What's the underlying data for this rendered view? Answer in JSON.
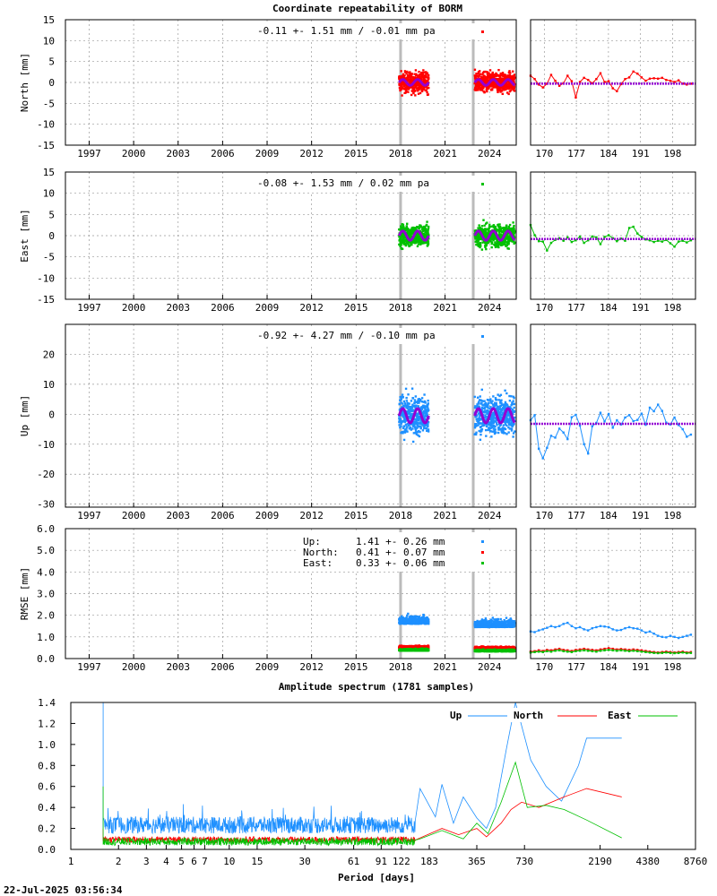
{
  "page_title": "Coordinate repeatability of BORM",
  "footer_timestamp": "22-Jul-2025 03:56:34",
  "colors": {
    "north": "#ff0000",
    "east": "#00c000",
    "up": "#1e90ff",
    "model": "#9400d3",
    "gap": "#bbbbbb"
  },
  "chart_data": [
    {
      "type": "scatter",
      "id": "north",
      "ylabel": "North [mm]",
      "ylim": [
        -15,
        15
      ],
      "yticks": [
        15,
        10,
        5,
        0,
        -5,
        -10,
        -15
      ],
      "xlim": [
        1995.4,
        2025.8
      ],
      "xticks": [
        1997,
        2000,
        2003,
        2006,
        2009,
        2012,
        2015,
        2018,
        2021,
        2024
      ],
      "stats_label": "-0.11 +- 1.51 mm / -0.01 mm pa",
      "series": [
        {
          "name": "North",
          "color": "#ff0000",
          "segments": [
            [
              2017.9,
              2019.9
            ],
            [
              2023.0,
              2025.7
            ]
          ],
          "mean": 0.0,
          "spread": 1.7,
          "model_amp": 0.7
        }
      ],
      "gaps_x": [
        2018.0,
        2022.9
      ],
      "zoom": {
        "xticks": [
          170,
          177,
          184,
          191,
          198
        ],
        "xlim": [
          167,
          203
        ],
        "ylim": [
          -15,
          15
        ],
        "mean": -0.3,
        "values": [
          1.6,
          0.8,
          -0.5,
          -1.2,
          -0.3,
          1.8,
          0.4,
          -0.8,
          -0.2,
          1.6,
          0.3,
          -3.6,
          0.1,
          1.1,
          0.6,
          -0.2,
          0.8,
          2.2,
          0.1,
          0.3,
          -1.4,
          -2.1,
          -0.4,
          0.8,
          1.2,
          2.6,
          2.1,
          1.2,
          0.4,
          0.9,
          1.0,
          0.9,
          1.1,
          0.6,
          0.4,
          0.1,
          0.5,
          -0.3,
          -0.5,
          -0.3
        ]
      }
    },
    {
      "type": "scatter",
      "id": "east",
      "ylabel": "East [mm]",
      "ylim": [
        -15,
        15
      ],
      "yticks": [
        15,
        10,
        5,
        0,
        -5,
        -10,
        -15
      ],
      "xlim": [
        1995.4,
        2025.8
      ],
      "xticks": [
        1997,
        2000,
        2003,
        2006,
        2009,
        2012,
        2015,
        2018,
        2021,
        2024
      ],
      "stats_label": "-0.08 +- 1.53 mm /  0.02 mm pa",
      "series": [
        {
          "name": "East",
          "color": "#00c000",
          "segments": [
            [
              2017.9,
              2019.9
            ],
            [
              2023.0,
              2025.7
            ]
          ],
          "mean": 0.0,
          "spread": 1.8,
          "model_amp": 1.1
        }
      ],
      "gaps_x": [
        2018.0,
        2022.9
      ],
      "zoom": {
        "xticks": [
          170,
          177,
          184,
          191,
          198
        ],
        "xlim": [
          167,
          203
        ],
        "ylim": [
          -15,
          15
        ],
        "mean": -0.8,
        "values": [
          2.5,
          0.1,
          -1.3,
          -1.4,
          -3.5,
          -1.7,
          -1.0,
          -0.6,
          -1.2,
          -0.4,
          -1.5,
          -1.1,
          -0.2,
          -1.7,
          -1.1,
          -0.2,
          -0.4,
          -2.0,
          -0.3,
          0.1,
          -0.6,
          -1.3,
          -0.7,
          -1.2,
          1.8,
          2.1,
          0.5,
          -0.3,
          -0.9,
          -1.1,
          -1.5,
          -1.2,
          -1.4,
          -1.0,
          -1.8,
          -2.6,
          -1.4,
          -1.2,
          -1.6,
          -1.1
        ]
      }
    },
    {
      "type": "scatter",
      "id": "up",
      "ylabel": "Up [mm]",
      "ylim": [
        -31,
        30
      ],
      "yticks": [
        20,
        10,
        0,
        -10,
        -20,
        -30
      ],
      "xlim": [
        1995.4,
        2025.8
      ],
      "xticks": [
        1997,
        2000,
        2003,
        2006,
        2009,
        2012,
        2015,
        2018,
        2021,
        2024
      ],
      "stats_label": "-0.92 +- 4.27 mm / -0.10 mm pa",
      "series": [
        {
          "name": "Up",
          "color": "#1e90ff",
          "segments": [
            [
              2017.9,
              2019.9
            ],
            [
              2023.0,
              2025.7
            ]
          ],
          "mean": -0.5,
          "spread": 4.6,
          "model_amp": 2.4
        }
      ],
      "gaps_x": [
        2018.0,
        2022.9
      ],
      "zoom": {
        "xticks": [
          170,
          177,
          184,
          191,
          198
        ],
        "xlim": [
          167,
          203
        ],
        "ylim": [
          -31,
          30
        ],
        "mean": -3.2,
        "values": [
          -2.0,
          -0.3,
          -11.5,
          -14.7,
          -11.2,
          -7.2,
          -7.8,
          -4.8,
          -6.1,
          -8.3,
          -1.0,
          -0.2,
          -3.8,
          -10.0,
          -13.1,
          -4.0,
          -2.9,
          0.5,
          -2.4,
          0.1,
          -4.5,
          -2.0,
          -3.4,
          -1.1,
          -0.3,
          -2.3,
          -1.9,
          0.2,
          -3.5,
          2.2,
          1.0,
          3.2,
          1.1,
          -2.8,
          -3.4,
          -1.1,
          -3.6,
          -5.0,
          -7.5,
          -6.8
        ]
      }
    },
    {
      "type": "scatter",
      "id": "rmse",
      "ylabel": "RMSE [mm]",
      "ylim": [
        0,
        6
      ],
      "yticks": [
        "6.0",
        "5.0",
        "4.0",
        "3.0",
        "2.0",
        "1.0",
        "0.0"
      ],
      "xlim": [
        1995.4,
        2025.8
      ],
      "xticks": [
        1997,
        2000,
        2003,
        2006,
        2009,
        2012,
        2015,
        2018,
        2021,
        2024
      ],
      "legend": [
        {
          "label": "Up:",
          "value": "1.41 +- 0.26 mm",
          "color": "#1e90ff"
        },
        {
          "label": "North:",
          "value": "0.41 +- 0.07 mm",
          "color": "#ff0000"
        },
        {
          "label": "East:",
          "value": "0.33 +- 0.06 mm",
          "color": "#00c000"
        }
      ],
      "series": [
        {
          "name": "Up",
          "color": "#1e90ff",
          "segments": [
            [
              2017.9,
              2019.9
            ],
            [
              2023.0,
              2025.7
            ]
          ],
          "mean": 1.45,
          "spread": 0.25
        },
        {
          "name": "North",
          "color": "#ff0000",
          "segments": [
            [
              2017.9,
              2019.9
            ],
            [
              2023.0,
              2025.7
            ]
          ],
          "mean": 0.45,
          "spread": 0.07
        },
        {
          "name": "East",
          "color": "#00c000",
          "segments": [
            [
              2017.9,
              2019.9
            ],
            [
              2023.0,
              2025.7
            ]
          ],
          "mean": 0.33,
          "spread": 0.06
        }
      ],
      "gaps_x": [
        2018.0,
        2022.9
      ],
      "zoom": {
        "xticks": [
          170,
          177,
          184,
          191,
          198
        ],
        "xlim": [
          167,
          203
        ],
        "ylim": [
          0,
          6
        ],
        "series": [
          {
            "name": "Up",
            "color": "#1e90ff",
            "values": [
              1.25,
              1.22,
              1.3,
              1.35,
              1.42,
              1.5,
              1.45,
              1.5,
              1.6,
              1.65,
              1.5,
              1.4,
              1.45,
              1.35,
              1.3,
              1.4,
              1.45,
              1.5,
              1.48,
              1.45,
              1.35,
              1.3,
              1.32,
              1.4,
              1.45,
              1.4,
              1.38,
              1.3,
              1.2,
              1.25,
              1.15,
              1.05,
              1.0,
              0.98,
              1.05,
              1.0,
              0.95,
              1.0,
              1.05,
              1.1
            ]
          },
          {
            "name": "North",
            "color": "#ff0000",
            "values": [
              0.32,
              0.34,
              0.38,
              0.35,
              0.4,
              0.38,
              0.42,
              0.45,
              0.4,
              0.38,
              0.35,
              0.4,
              0.42,
              0.45,
              0.42,
              0.4,
              0.38,
              0.42,
              0.45,
              0.48,
              0.45,
              0.42,
              0.44,
              0.42,
              0.4,
              0.42,
              0.4,
              0.38,
              0.35,
              0.32,
              0.3,
              0.28,
              0.3,
              0.32,
              0.3,
              0.28,
              0.3,
              0.32,
              0.28,
              0.3
            ]
          },
          {
            "name": "East",
            "color": "#00c000",
            "values": [
              0.28,
              0.3,
              0.32,
              0.3,
              0.34,
              0.32,
              0.36,
              0.38,
              0.34,
              0.32,
              0.3,
              0.34,
              0.36,
              0.38,
              0.36,
              0.34,
              0.32,
              0.36,
              0.38,
              0.4,
              0.38,
              0.36,
              0.38,
              0.36,
              0.34,
              0.36,
              0.34,
              0.32,
              0.3,
              0.28,
              0.26,
              0.25,
              0.26,
              0.28,
              0.26,
              0.25,
              0.26,
              0.28,
              0.25,
              0.26
            ]
          }
        ]
      }
    },
    {
      "type": "line",
      "id": "spectrum",
      "title": "Amplitude spectrum (1781 samples)",
      "xlabel": "Period [days]",
      "xscale": "log",
      "xlim": [
        1,
        8760
      ],
      "ylim": [
        0,
        1.4
      ],
      "xtick_values": [
        1,
        2,
        3,
        4,
        5,
        6,
        7,
        10,
        15,
        30,
        61,
        91,
        122,
        183,
        365,
        730,
        2190,
        4380,
        8760
      ],
      "xtick_labels": [
        "1",
        "2",
        "3",
        "4",
        "5",
        "6",
        "7",
        "10",
        "15",
        "30",
        "61",
        "91",
        "122",
        "183",
        "365",
        "730",
        "2190",
        "4380",
        "8760"
      ],
      "yticks": [
        "1.4",
        "1.2",
        "1.0",
        "0.8",
        "0.6",
        "0.4",
        "0.2",
        "0.0"
      ],
      "ytick_values": [
        1.4,
        1.2,
        1.0,
        0.8,
        0.6,
        0.4,
        0.2,
        0.0
      ],
      "series": [
        {
          "name": "Up",
          "color": "#1e90ff",
          "noise": [
            0.2,
            0.1
          ],
          "peaks": [
            [
              1.6,
              1.4
            ],
            [
              1.6,
              0.05
            ],
            [
              160,
              0.58
            ],
            [
              200,
              0.31
            ],
            [
              220,
              0.62
            ],
            [
              260,
              0.25
            ],
            [
              300,
              0.5
            ],
            [
              365,
              0.3
            ],
            [
              420,
              0.2
            ],
            [
              480,
              0.4
            ],
            [
              560,
              0.95
            ],
            [
              640,
              1.4
            ],
            [
              800,
              0.85
            ],
            [
              1000,
              0.6
            ],
            [
              1250,
              0.46
            ],
            [
              1600,
              0.8
            ],
            [
              1800,
              1.06
            ],
            [
              3000,
              1.06
            ]
          ]
        },
        {
          "name": "North",
          "color": "#ff0000",
          "noise": [
            0.08,
            0.05
          ],
          "peaks": [
            [
              1.6,
              0.2
            ],
            [
              160,
              0.12
            ],
            [
              220,
              0.2
            ],
            [
              280,
              0.14
            ],
            [
              365,
              0.2
            ],
            [
              420,
              0.12
            ],
            [
              520,
              0.25
            ],
            [
              600,
              0.38
            ],
            [
              700,
              0.45
            ],
            [
              900,
              0.4
            ],
            [
              1300,
              0.5
            ],
            [
              1800,
              0.58
            ],
            [
              3000,
              0.5
            ]
          ]
        },
        {
          "name": "East",
          "color": "#00c000",
          "noise": [
            0.06,
            0.06
          ],
          "peaks": [
            [
              1.6,
              0.6
            ],
            [
              1.6,
              0.1
            ],
            [
              160,
              0.1
            ],
            [
              220,
              0.18
            ],
            [
              300,
              0.1
            ],
            [
              365,
              0.25
            ],
            [
              430,
              0.15
            ],
            [
              520,
              0.45
            ],
            [
              640,
              0.83
            ],
            [
              760,
              0.4
            ],
            [
              1000,
              0.42
            ],
            [
              1300,
              0.38
            ],
            [
              1800,
              0.28
            ],
            [
              3000,
              0.11
            ]
          ]
        }
      ]
    }
  ]
}
